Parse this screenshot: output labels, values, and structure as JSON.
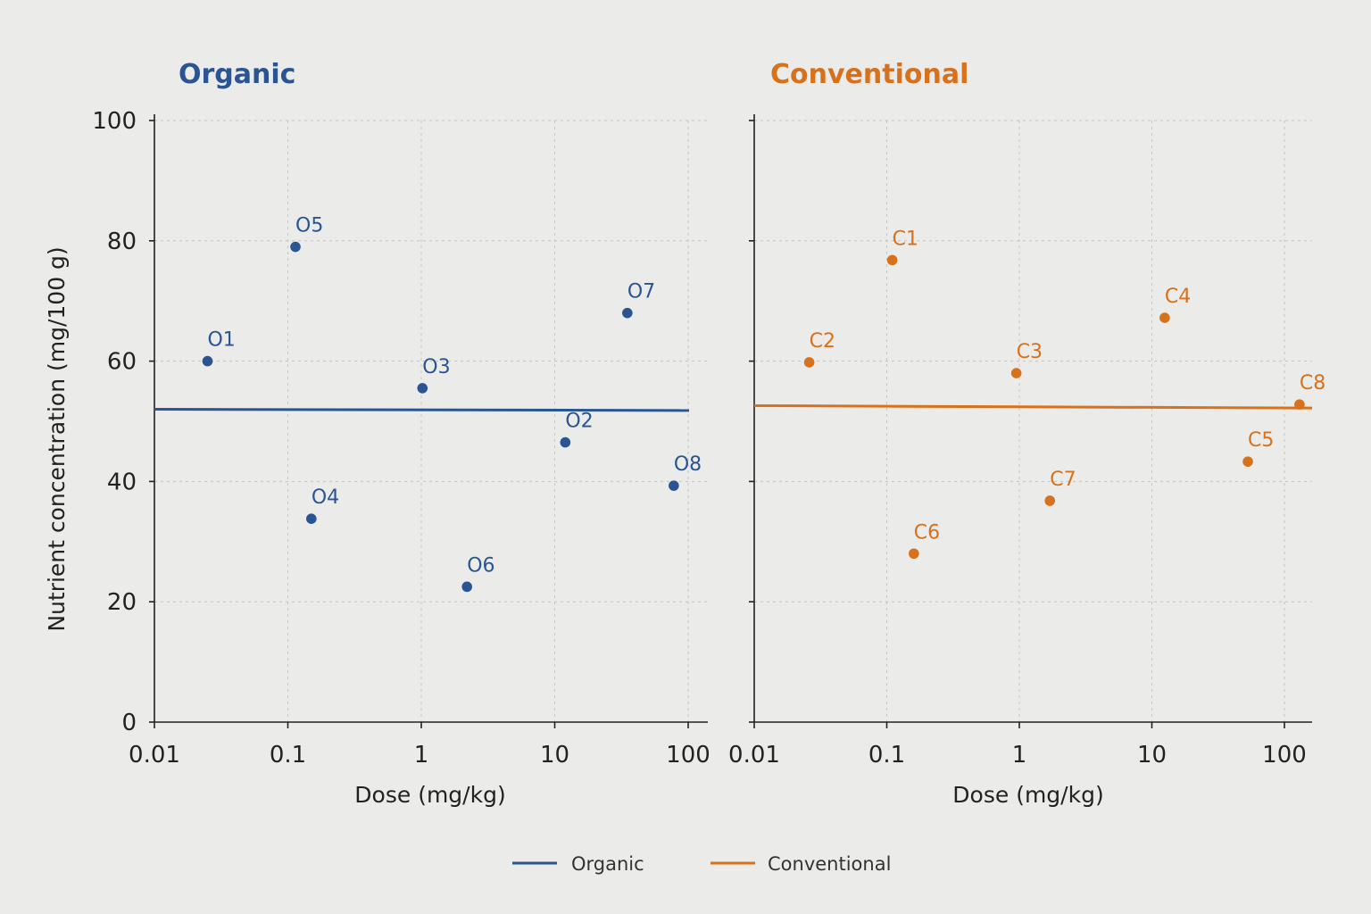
{
  "chart_data": [
    {
      "type": "scatter",
      "title": "Organic",
      "xlabel": "Dose (mg/kg)",
      "ylabel": "Nutrient concentration (mg/100 g)",
      "xscale": "log",
      "xlim": [
        0.01,
        100
      ],
      "ylim": [
        0,
        100
      ],
      "x_ticks": [
        "0.01",
        "0.1",
        "1",
        "10",
        "100"
      ],
      "y_ticks": [
        "0",
        "20",
        "40",
        "60",
        "80",
        "100"
      ],
      "grid": true,
      "color": "#2a5592",
      "series": [
        {
          "name": "Organic",
          "points": [
            {
              "label": "O1",
              "x": 0.025,
              "y": 60
            },
            {
              "label": "O2",
              "x": 12,
              "y": 46.5
            },
            {
              "label": "O3",
              "x": 1.02,
              "y": 55.5
            },
            {
              "label": "O4",
              "x": 0.15,
              "y": 33.8
            },
            {
              "label": "O5",
              "x": 0.114,
              "y": 79
            },
            {
              "label": "O6",
              "x": 2.2,
              "y": 22.5
            },
            {
              "label": "O7",
              "x": 35,
              "y": 68
            },
            {
              "label": "O8",
              "x": 78,
              "y": 39.3
            }
          ]
        }
      ],
      "reference_line": {
        "y_start": 52,
        "y_end": 51.8
      }
    },
    {
      "type": "scatter",
      "title": "Conventional",
      "xlabel": "Dose (mg/kg)",
      "xscale": "log",
      "xlim": [
        0.01,
        100
      ],
      "ylim": [
        0,
        100
      ],
      "x_ticks": [
        "0.01",
        "0.1",
        "1",
        "10",
        "100"
      ],
      "grid": true,
      "color": "#d8711c",
      "series": [
        {
          "name": "Conventional",
          "points": [
            {
              "label": "C1",
              "x": 0.11,
              "y": 76.8
            },
            {
              "label": "C2",
              "x": 0.026,
              "y": 59.8
            },
            {
              "label": "C3",
              "x": 0.95,
              "y": 58
            },
            {
              "label": "C4",
              "x": 12.5,
              "y": 67.2
            },
            {
              "label": "C5",
              "x": 53,
              "y": 43.3
            },
            {
              "label": "C6",
              "x": 0.16,
              "y": 28
            },
            {
              "label": "C7",
              "x": 1.7,
              "y": 36.8
            },
            {
              "label": "C8",
              "x": 130,
              "y": 52.8
            }
          ]
        }
      ],
      "reference_line": {
        "y_start": 52.6,
        "y_end": 52.2
      }
    }
  ],
  "legend": [
    {
      "label": "Organic",
      "color": "#2a5592"
    },
    {
      "label": "Conventional",
      "color": "#d8711c"
    }
  ]
}
